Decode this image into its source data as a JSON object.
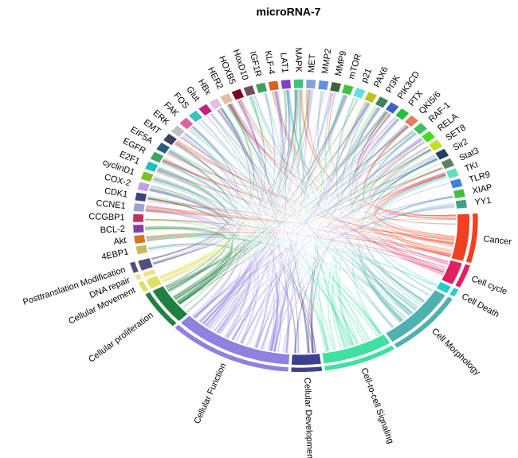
{
  "title": "microRNA-7",
  "genes": [
    {
      "label": "4EBP1",
      "color": "#c8b860"
    },
    {
      "label": "Akt",
      "color": "#e07020"
    },
    {
      "label": "BCL-2",
      "color": "#8040a0"
    },
    {
      "label": "CCGBP1",
      "color": "#c03060"
    },
    {
      "label": "CCNE1",
      "color": "#a0a0d8"
    },
    {
      "label": "CDK1",
      "color": "#404080"
    },
    {
      "label": "COX-2",
      "color": "#c0a0e0"
    },
    {
      "label": "cyclinD1",
      "color": "#80c020"
    },
    {
      "label": "E2F1",
      "color": "#20c0c0"
    },
    {
      "label": "EGFR",
      "color": "#40a060"
    },
    {
      "label": "EIF5A",
      "color": "#206080"
    },
    {
      "label": "EMT",
      "color": "#404060"
    },
    {
      "label": "ERK",
      "color": "#c0c0c0"
    },
    {
      "label": "FAK",
      "color": "#e060a0"
    },
    {
      "label": "FOS",
      "color": "#40c0c0"
    },
    {
      "label": "Glut",
      "color": "#c02080"
    },
    {
      "label": "HBx",
      "color": "#e0c0e0"
    },
    {
      "label": "HER2",
      "color": "#e0c0a0"
    },
    {
      "label": "HOXB5",
      "color": "#800020"
    },
    {
      "label": "HoxD10",
      "color": "#705060"
    },
    {
      "label": "IGF1R",
      "color": "#40a060"
    },
    {
      "label": "KLF-4",
      "color": "#e06020"
    },
    {
      "label": "LAT1",
      "color": "#8040c0"
    },
    {
      "label": "MAPK",
      "color": "#40c080"
    },
    {
      "label": "MET",
      "color": "#80a0e0"
    },
    {
      "label": "MMP2",
      "color": "#6090e0"
    },
    {
      "label": "MMP9",
      "color": "#406040"
    },
    {
      "label": "mTOR",
      "color": "#40c040"
    },
    {
      "label": "p21",
      "color": "#60e0e0"
    },
    {
      "label": "PAX6",
      "color": "#c0c020"
    },
    {
      "label": "PI3K",
      "color": "#408060"
    },
    {
      "label": "PIK3CD",
      "color": "#4060c0"
    },
    {
      "label": "PTX",
      "color": "#20c040"
    },
    {
      "label": "QKI5/6",
      "color": "#e08060"
    },
    {
      "label": "RAF-1",
      "color": "#40c060"
    },
    {
      "label": "RELA",
      "color": "#40e020"
    },
    {
      "label": "SET8",
      "color": "#c0e020"
    },
    {
      "label": "Sir2",
      "color": "#204060"
    },
    {
      "label": "Stat3",
      "color": "#608060"
    },
    {
      "label": "TKI",
      "color": "#60e0c0"
    },
    {
      "label": "TLR9",
      "color": "#4080e0"
    },
    {
      "label": "XIAP",
      "color": "#40c040"
    },
    {
      "label": "YY1",
      "color": "#40a080"
    }
  ],
  "categories": [
    {
      "label": "Cancer",
      "color": "#f04020"
    },
    {
      "label": "Cell cycle",
      "color": "#e02060"
    },
    {
      "label": "Cell Death",
      "color": "#20d0d0"
    },
    {
      "label": "Cell Morphology",
      "color": "#50b0b0"
    },
    {
      "label": "Cell-to-cell Signaling",
      "color": "#40e0a0"
    },
    {
      "label": "Cellular Development",
      "color": "#404090"
    },
    {
      "label": "Cellular Function",
      "color": "#9080e0"
    },
    {
      "label": "Cellular proliferation",
      "color": "#208040"
    },
    {
      "label": "Cellular Movement",
      "color": "#e0e060"
    },
    {
      "label": "DNA repair",
      "color": "#f0e090"
    },
    {
      "label": "Posttranslation Modification",
      "color": "#505080"
    }
  ]
}
